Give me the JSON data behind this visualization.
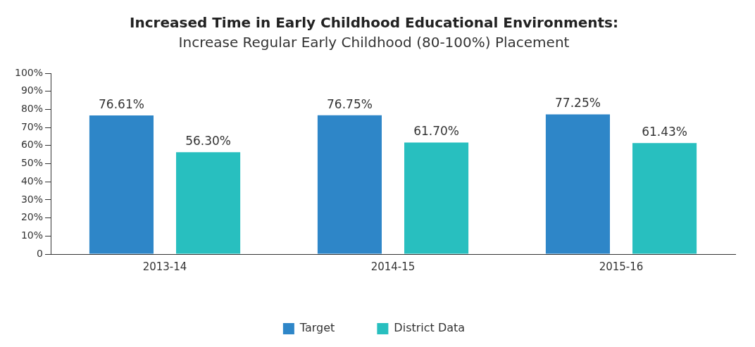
{
  "chart_data": {
    "type": "bar",
    "title": "Increased Time in Early Childhood Educational Environments:",
    "subtitle": "Increase Regular Early Childhood (80-100%) Placement",
    "categories": [
      "2013-14",
      "2014-15",
      "2015-16"
    ],
    "series": [
      {
        "name": "Target",
        "color": "#2e86c8",
        "values": [
          76.61,
          76.75,
          77.25
        ],
        "value_labels": [
          "76.61%",
          "76.75%",
          "77.25%"
        ]
      },
      {
        "name": "District Data",
        "color": "#28bfbf",
        "values": [
          56.3,
          61.7,
          61.43
        ],
        "value_labels": [
          "56.30%",
          "61.70%",
          "61.43%"
        ]
      }
    ],
    "ylim": [
      0,
      100
    ],
    "yticks": [
      0,
      {
        "value": 10,
        "label": "10%"
      },
      {
        "value": 20,
        "label": "20%"
      },
      {
        "value": 30,
        "label": "30%"
      },
      {
        "value": 40,
        "label": "40%"
      },
      {
        "value": 50,
        "label": "50%"
      },
      {
        "value": 60,
        "label": "60%"
      },
      {
        "value": 70,
        "label": "70%"
      },
      {
        "value": 80,
        "label": "80%"
      },
      {
        "value": 90,
        "label": "90%"
      },
      {
        "value": 100,
        "label": "100%"
      }
    ],
    "grid": false,
    "legend": "bottom"
  }
}
